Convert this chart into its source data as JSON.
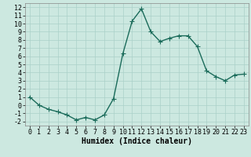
{
  "x": [
    0,
    1,
    2,
    3,
    4,
    5,
    6,
    7,
    8,
    9,
    10,
    11,
    12,
    13,
    14,
    15,
    16,
    17,
    18,
    19,
    20,
    21,
    22,
    23
  ],
  "y": [
    1.0,
    0.0,
    -0.5,
    -0.8,
    -1.2,
    -1.8,
    -1.5,
    -1.8,
    -1.2,
    0.8,
    6.3,
    10.3,
    11.8,
    9.0,
    7.8,
    8.2,
    8.5,
    8.5,
    7.2,
    4.2,
    3.5,
    3.0,
    3.7,
    3.8
  ],
  "line_color": "#1a6b5a",
  "marker": "+",
  "markersize": 4,
  "linewidth": 1.0,
  "xlabel": "Humidex (Indice chaleur)",
  "xlim": [
    -0.5,
    23.5
  ],
  "ylim": [
    -2.5,
    12.5
  ],
  "yticks": [
    -2,
    -1,
    0,
    1,
    2,
    3,
    4,
    5,
    6,
    7,
    8,
    9,
    10,
    11,
    12
  ],
  "xticks": [
    0,
    1,
    2,
    3,
    4,
    5,
    6,
    7,
    8,
    9,
    10,
    11,
    12,
    13,
    14,
    15,
    16,
    17,
    18,
    19,
    20,
    21,
    22,
    23
  ],
  "bg_color": "#cce8e0",
  "grid_color": "#aad0c8",
  "label_fontsize": 7,
  "tick_fontsize": 6
}
